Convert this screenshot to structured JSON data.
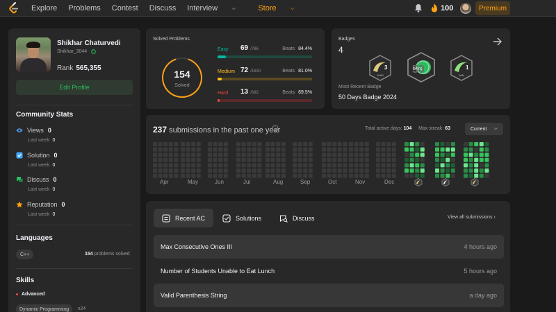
{
  "nav": {
    "links": [
      "Explore",
      "Problems",
      "Contest",
      "Discuss"
    ],
    "interview_label": "Interview",
    "store_label": "Store",
    "streak": "100",
    "premium_label": "Premium"
  },
  "profile": {
    "name": "Shikhar Chaturvedi",
    "handle": "Shikhar_3044",
    "rank_label": "Rank",
    "rank_value": "565,355",
    "edit_label": "Edit Profile"
  },
  "community": {
    "title": "Community Stats",
    "last_week_label": "Last week",
    "stats": [
      {
        "label": "Views",
        "value": "0",
        "last_week": "0",
        "icon": "eye-icon",
        "color": "#4ea4f6"
      },
      {
        "label": "Solution",
        "value": "0",
        "last_week": "0",
        "icon": "solution-icon",
        "color": "#3fa7ff"
      },
      {
        "label": "Discuss",
        "value": "0",
        "last_week": "0",
        "icon": "discuss-icon",
        "color": "#2cbb5d"
      },
      {
        "label": "Reputation",
        "value": "0",
        "last_week": "0",
        "icon": "reputation-icon",
        "color": "#ffa116"
      }
    ]
  },
  "languages": {
    "title": "Languages",
    "items": [
      {
        "name": "C++",
        "count": "154",
        "suffix": "problems solved"
      }
    ]
  },
  "skills": {
    "title": "Skills",
    "level": "Advanced",
    "items": [
      {
        "name": "Dynamic Programming",
        "count": "x24"
      }
    ]
  },
  "solved": {
    "title": "Solved Problems",
    "total": "154",
    "total_label": "Solved",
    "beats_label": "Beats",
    "difficulties": [
      {
        "label": "Easy",
        "solved": 69,
        "total_text": "/786",
        "total": 786,
        "beats": "84.4%",
        "color": "#00b8a3",
        "track": "#1f4a3f"
      },
      {
        "label": "Medium",
        "solved": 72,
        "total_text": "/1630",
        "total": 1630,
        "beats": "81.0%",
        "color": "#ffc01e",
        "track": "#5a4a1f"
      },
      {
        "label": "Hard",
        "solved": 13,
        "total_text": "/692",
        "total": 692,
        "beats": "69.5%",
        "color": "#ef4743",
        "track": "#5a2a2a"
      }
    ]
  },
  "badges": {
    "title": "Badges",
    "count": "4",
    "recent_label": "Most Recent Badge",
    "recent_name": "50 Days Badge 2024",
    "items": [
      {
        "name": "mar-badge-icon",
        "text": "3",
        "sub": "MAR"
      },
      {
        "name": "50-days-badge-icon",
        "text": "50",
        "sub": "DAYS"
      },
      {
        "name": "jan-badge-icon",
        "text": "1",
        "sub": "JAN"
      }
    ]
  },
  "calendar": {
    "count": "237",
    "title_suffix": "submissions in the past one year",
    "active_days_label": "Total active days:",
    "active_days": "104",
    "max_streak_label": "Max streak:",
    "max_streak": "63",
    "select_value": "Current",
    "months": [
      "Apr",
      "May",
      "Jun",
      "Jul",
      "Aug",
      "Sep",
      "Oct",
      "Nov",
      "Dec"
    ],
    "active_month_levels": {
      "aug": [
        0,
        0,
        0,
        0,
        0,
        0,
        0,
        0,
        0,
        0,
        0,
        0,
        0,
        0,
        0,
        0,
        0,
        0,
        0,
        0,
        0,
        0,
        0,
        0,
        0,
        0,
        0,
        0,
        0,
        0,
        0,
        0,
        0,
        0,
        0,
        0,
        1,
        0,
        0,
        0,
        0,
        0,
        0,
        1,
        0,
        0,
        0,
        0,
        0,
        0,
        0,
        0,
        0,
        0,
        0,
        0,
        0,
        0,
        0,
        0,
        0,
        0,
        1
      ]
    }
  },
  "recent": {
    "tabs": [
      {
        "label": "Recent AC",
        "icon": "recent-ac-icon"
      },
      {
        "label": "Solutions",
        "icon": "solutions-icon"
      },
      {
        "label": "Discuss",
        "icon": "discuss-tab-icon"
      }
    ],
    "view_all": "View all submissions",
    "rows": [
      {
        "title": "Max Consecutive Ones III",
        "time": "4 hours ago"
      },
      {
        "title": "Number of Students Unable to Eat Lunch",
        "time": "5 hours ago"
      },
      {
        "title": "Valid Parenthesis String",
        "time": "a day ago"
      }
    ]
  }
}
